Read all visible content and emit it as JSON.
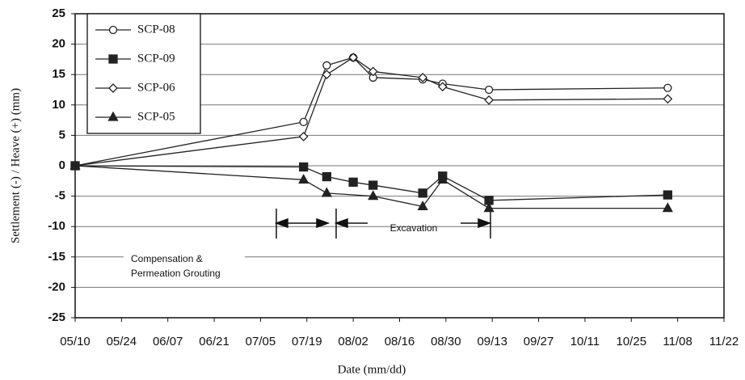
{
  "chart_data": {
    "type": "line",
    "xlabel": "Date (mm/dd)",
    "ylabel": "Settlement (-) / Heave (+) (mm)",
    "xlim": [
      "05/10",
      "11/22"
    ],
    "xticks": [
      "05/10",
      "05/24",
      "06/07",
      "06/21",
      "07/05",
      "07/19",
      "08/02",
      "08/16",
      "08/30",
      "09/13",
      "09/27",
      "10/11",
      "10/25",
      "11/08",
      "11/22"
    ],
    "ylim": [
      -25,
      25
    ],
    "yticks": [
      -25,
      -20,
      -15,
      -10,
      -5,
      0,
      5,
      10,
      15,
      20,
      25
    ],
    "grid": true,
    "annotations": [
      "Compensation &",
      "Permeation Grouting",
      "Excavation"
    ],
    "series": [
      {
        "name": "SCP-08",
        "color": "#222",
        "marker": "circle",
        "x": [
          "05/10",
          "07/18",
          "07/25",
          "08/02",
          "08/08",
          "08/23",
          "08/29",
          "09/12",
          "11/05"
        ],
        "values": [
          0,
          7.2,
          16.5,
          17.8,
          14.5,
          14.2,
          13.5,
          12.5,
          12.8
        ]
      },
      {
        "name": "SCP-09",
        "color": "#222",
        "marker": "square",
        "x": [
          "05/10",
          "07/18",
          "07/25",
          "08/02",
          "08/08",
          "08/23",
          "08/29",
          "09/12",
          "11/05"
        ],
        "values": [
          0,
          -0.2,
          -1.8,
          -2.7,
          -3.2,
          -4.5,
          -1.7,
          -5.7,
          -4.8
        ]
      },
      {
        "name": "SCP-06",
        "color": "#222",
        "marker": "diamond",
        "x": [
          "05/10",
          "07/18",
          "07/25",
          "08/02",
          "08/08",
          "08/23",
          "08/29",
          "09/12",
          "11/05"
        ],
        "values": [
          0,
          4.8,
          15,
          17.8,
          15.5,
          14.5,
          13,
          10.8,
          11
        ]
      },
      {
        "name": "SCP-05",
        "color": "#222",
        "marker": "triangle",
        "x": [
          "05/10",
          "07/18",
          "07/25",
          "08/08",
          "08/23",
          "08/29",
          "09/12",
          "11/05"
        ],
        "values": [
          0,
          -2.3,
          -4.5,
          -5,
          -6.7,
          -2.3,
          -7,
          -7
        ]
      }
    ]
  }
}
